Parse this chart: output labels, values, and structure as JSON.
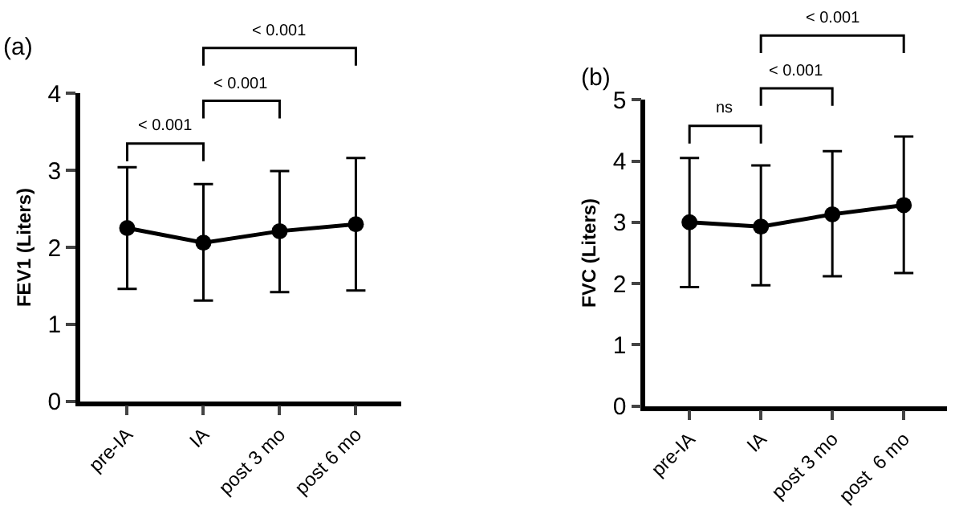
{
  "chart_data": [
    {
      "type": "line",
      "ylabel": "FEV1 (Liters)",
      "categories": [
        "pre-IA",
        "IA",
        "post 3 mo",
        "post 6 mo"
      ],
      "series": [
        {
          "color": "#000000",
          "values": [
            2.25,
            2.06,
            2.21,
            2.3
          ],
          "errors": [
            [
              1.46,
              3.04
            ],
            [
              1.31,
              2.82
            ],
            [
              1.42,
              2.99
            ],
            [
              1.44,
              3.16
            ]
          ]
        }
      ],
      "ylim": [
        0,
        4
      ],
      "yticks": [
        0,
        1,
        2,
        3,
        4
      ],
      "marker": "circle",
      "line_style": "solid",
      "annotations": [
        "(a)",
        "< 0.001",
        "< 0.001",
        "< 0.001"
      ]
    },
    {
      "type": "line",
      "ylabel": "FVC (Liters)",
      "categories": [
        "pre-IA",
        "IA",
        "post 3 mo",
        "post  6 mo"
      ],
      "series": [
        {
          "color": "#000000",
          "values": [
            3.0,
            2.93,
            3.13,
            3.28
          ],
          "errors": [
            [
              1.94,
              4.05
            ],
            [
              1.97,
              3.93
            ],
            [
              2.12,
              4.16
            ],
            [
              2.17,
              4.4
            ]
          ]
        }
      ],
      "ylim": [
        0,
        5
      ],
      "yticks": [
        0,
        1,
        2,
        3,
        4,
        5
      ],
      "marker": "circle",
      "line_style": "solid",
      "annotations": [
        "(b)",
        "ns",
        "< 0.001",
        "< 0.001"
      ]
    }
  ]
}
